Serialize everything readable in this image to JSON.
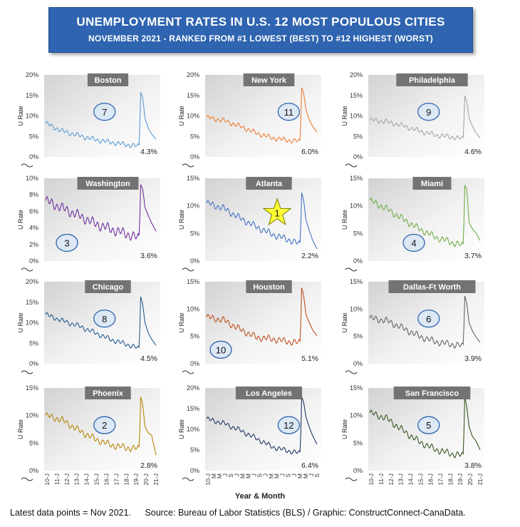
{
  "header": {
    "title": "UNEMPLOYMENT RATES IN U.S. 12 MOST POPULOUS CITIES",
    "subtitle": "NOVEMBER 2021 - RANKED FROM #1 LOWEST (BEST) TO #12 HIGHEST (WORST)"
  },
  "footer": {
    "note": "Latest data points = Nov 2021.",
    "source": "Source: Bureau of Labor Statistics (BLS) / Graphic: ConstructConnect-CanaData."
  },
  "axis_titles": {
    "y": "U Rate",
    "x": "Year & Month"
  },
  "chart_data": [
    {
      "type": "line",
      "city": "Boston",
      "rank": "7",
      "last_label": "4.3%",
      "color": "#5b9bd5",
      "y_ticks": [
        "0%",
        "5%",
        "10%",
        "15%",
        "20%"
      ],
      "ylim": [
        0,
        20
      ],
      "x_ticks": [],
      "points": [
        [
          0,
          8.2
        ],
        [
          0.15,
          6.3
        ],
        [
          0.3,
          5.2
        ],
        [
          0.45,
          4.2
        ],
        [
          0.6,
          3.5
        ],
        [
          0.75,
          2.9
        ],
        [
          0.85,
          2.6
        ],
        [
          0.86,
          15.8
        ],
        [
          0.88,
          14.5
        ],
        [
          0.9,
          9.5
        ],
        [
          0.93,
          7.0
        ],
        [
          0.96,
          5.6
        ],
        [
          1,
          4.3
        ]
      ]
    },
    {
      "type": "line",
      "city": "New York",
      "rank": "11",
      "last_label": "6.0%",
      "color": "#ed7d31",
      "y_ticks": [
        "0%",
        "5%",
        "10%",
        "15%",
        "20%"
      ],
      "ylim": [
        0,
        20
      ],
      "x_ticks": [],
      "points": [
        [
          0,
          9.6
        ],
        [
          0.15,
          8.9
        ],
        [
          0.3,
          7.5
        ],
        [
          0.45,
          5.8
        ],
        [
          0.6,
          4.6
        ],
        [
          0.75,
          4.0
        ],
        [
          0.85,
          3.8
        ],
        [
          0.86,
          17.0
        ],
        [
          0.88,
          15.5
        ],
        [
          0.9,
          11.5
        ],
        [
          0.93,
          9.0
        ],
        [
          0.96,
          7.5
        ],
        [
          1,
          6.0
        ]
      ]
    },
    {
      "type": "line",
      "city": "Philadelphia",
      "rank": "9",
      "last_label": "4.6%",
      "color": "#a5a5a5",
      "y_ticks": [
        "0%",
        "5%",
        "10%",
        "15%",
        "20%"
      ],
      "ylim": [
        0,
        20
      ],
      "x_ticks": [],
      "points": [
        [
          0,
          9.0
        ],
        [
          0.15,
          8.6
        ],
        [
          0.3,
          7.6
        ],
        [
          0.45,
          6.3
        ],
        [
          0.6,
          5.3
        ],
        [
          0.75,
          4.8
        ],
        [
          0.85,
          4.4
        ],
        [
          0.86,
          15.0
        ],
        [
          0.88,
          13.5
        ],
        [
          0.9,
          9.5
        ],
        [
          0.93,
          7.5
        ],
        [
          0.96,
          6.0
        ],
        [
          1,
          4.6
        ]
      ]
    },
    {
      "type": "line",
      "city": "Washington",
      "rank": "3",
      "last_label": "3.6%",
      "color": "#7030a0",
      "y_ticks": [
        "0%",
        "2%",
        "4%",
        "6%",
        "8%",
        "10%"
      ],
      "ylim": [
        0,
        10
      ],
      "x_ticks": [],
      "points": [
        [
          0,
          7.3
        ],
        [
          0.15,
          6.4
        ],
        [
          0.3,
          5.5
        ],
        [
          0.45,
          4.5
        ],
        [
          0.6,
          3.8
        ],
        [
          0.75,
          3.2
        ],
        [
          0.85,
          2.7
        ],
        [
          0.86,
          9.3
        ],
        [
          0.88,
          8.7
        ],
        [
          0.9,
          6.5
        ],
        [
          0.93,
          5.5
        ],
        [
          0.96,
          4.6
        ],
        [
          1,
          3.6
        ]
      ]
    },
    {
      "type": "line",
      "city": "Atlanta",
      "rank": "1",
      "star": true,
      "last_label": "2.2%",
      "color": "#4472c4",
      "y_ticks": [
        "0%",
        "5%",
        "10%",
        "15%"
      ],
      "ylim": [
        0,
        15
      ],
      "x_ticks": [],
      "points": [
        [
          0,
          10.5
        ],
        [
          0.15,
          9.6
        ],
        [
          0.3,
          7.8
        ],
        [
          0.45,
          6.2
        ],
        [
          0.6,
          4.8
        ],
        [
          0.75,
          3.8
        ],
        [
          0.85,
          3.0
        ],
        [
          0.86,
          12.5
        ],
        [
          0.88,
          11.0
        ],
        [
          0.9,
          7.5
        ],
        [
          0.93,
          5.5
        ],
        [
          0.96,
          3.8
        ],
        [
          1,
          2.2
        ]
      ]
    },
    {
      "type": "line",
      "city": "Miami",
      "rank": "4",
      "last_label": "3.7%",
      "color": "#70ad47",
      "y_ticks": [
        "0%",
        "5%",
        "10%",
        "15%"
      ],
      "ylim": [
        0,
        15
      ],
      "x_ticks": [],
      "points": [
        [
          0,
          11.0
        ],
        [
          0.15,
          9.5
        ],
        [
          0.3,
          7.6
        ],
        [
          0.45,
          5.8
        ],
        [
          0.6,
          4.3
        ],
        [
          0.75,
          3.3
        ],
        [
          0.85,
          2.8
        ],
        [
          0.86,
          13.7
        ],
        [
          0.88,
          13.0
        ],
        [
          0.9,
          7.0
        ],
        [
          0.93,
          5.8
        ],
        [
          0.96,
          5.2
        ],
        [
          1,
          3.7
        ]
      ]
    },
    {
      "type": "line",
      "city": "Chicago",
      "rank": "8",
      "last_label": "4.5%",
      "color": "#255e91",
      "y_ticks": [
        "0%",
        "5%",
        "10%",
        "15%",
        "20%"
      ],
      "ylim": [
        0,
        20
      ],
      "x_ticks": [],
      "points": [
        [
          0,
          12.0
        ],
        [
          0.15,
          10.5
        ],
        [
          0.3,
          9.2
        ],
        [
          0.45,
          7.5
        ],
        [
          0.6,
          5.8
        ],
        [
          0.75,
          4.6
        ],
        [
          0.85,
          3.6
        ],
        [
          0.86,
          16.5
        ],
        [
          0.88,
          14.5
        ],
        [
          0.9,
          10.0
        ],
        [
          0.93,
          7.5
        ],
        [
          0.96,
          6.0
        ],
        [
          1,
          4.5
        ]
      ]
    },
    {
      "type": "line",
      "city": "Houston",
      "rank": "10",
      "last_label": "5.1%",
      "color": "#c0501e",
      "y_ticks": [
        "0%",
        "5%",
        "10%",
        "15%"
      ],
      "ylim": [
        0,
        15
      ],
      "x_ticks": [],
      "points": [
        [
          0,
          8.5
        ],
        [
          0.15,
          8.0
        ],
        [
          0.3,
          6.3
        ],
        [
          0.45,
          4.8
        ],
        [
          0.6,
          4.5
        ],
        [
          0.75,
          4.0
        ],
        [
          0.85,
          3.8
        ],
        [
          0.86,
          14.0
        ],
        [
          0.88,
          12.5
        ],
        [
          0.9,
          9.0
        ],
        [
          0.93,
          7.5
        ],
        [
          0.96,
          6.2
        ],
        [
          1,
          5.1
        ]
      ]
    },
    {
      "type": "line",
      "city": "Dallas-Ft Worth",
      "rank": "6",
      "last_label": "3.9%",
      "color": "#636363",
      "y_ticks": [
        "0%",
        "5%",
        "10%",
        "15%"
      ],
      "ylim": [
        0,
        15
      ],
      "x_ticks": [],
      "points": [
        [
          0,
          8.3
        ],
        [
          0.15,
          7.9
        ],
        [
          0.3,
          6.5
        ],
        [
          0.45,
          5.0
        ],
        [
          0.6,
          4.0
        ],
        [
          0.75,
          3.5
        ],
        [
          0.85,
          3.2
        ],
        [
          0.86,
          12.5
        ],
        [
          0.88,
          11.0
        ],
        [
          0.9,
          7.5
        ],
        [
          0.93,
          6.0
        ],
        [
          0.96,
          5.0
        ],
        [
          1,
          3.9
        ]
      ]
    },
    {
      "type": "line",
      "city": "Phoenix",
      "rank": "2",
      "last_label": "2.8%",
      "color": "#b8860b",
      "y_ticks": [
        "0%",
        "5%",
        "10%",
        "15%"
      ],
      "ylim": [
        0,
        15
      ],
      "x_ticks": [
        "10-J",
        "11-J",
        "12-J",
        "13-J",
        "14-J",
        "15-J",
        "16-J",
        "17-J",
        "18-J",
        "19-J",
        "20-J",
        "21-J"
      ],
      "points": [
        [
          0,
          10.0
        ],
        [
          0.15,
          9.2
        ],
        [
          0.3,
          7.3
        ],
        [
          0.45,
          5.7
        ],
        [
          0.6,
          4.6
        ],
        [
          0.75,
          4.1
        ],
        [
          0.85,
          4.0
        ],
        [
          0.86,
          13.5
        ],
        [
          0.88,
          12.0
        ],
        [
          0.9,
          8.0
        ],
        [
          0.93,
          6.8
        ],
        [
          0.96,
          6.5
        ],
        [
          1,
          2.8
        ]
      ]
    },
    {
      "type": "line",
      "city": "Los Angeles",
      "rank": "12",
      "last_label": "6.4%",
      "color": "#203864",
      "y_ticks": [
        "0%",
        "5%",
        "10%",
        "15%",
        "20%"
      ],
      "ylim": [
        0,
        20
      ],
      "x_ticks": [
        "10-J",
        "M",
        "M",
        "J",
        "S",
        "J",
        "M",
        "M",
        "J",
        "S",
        "J",
        "M",
        "M",
        "J",
        "S",
        "J",
        "M",
        "M",
        "J",
        "S"
      ],
      "points": [
        [
          0,
          12.5
        ],
        [
          0.15,
          11.5
        ],
        [
          0.3,
          9.8
        ],
        [
          0.45,
          7.8
        ],
        [
          0.6,
          5.7
        ],
        [
          0.75,
          4.7
        ],
        [
          0.85,
          4.2
        ],
        [
          0.86,
          18.0
        ],
        [
          0.88,
          16.5
        ],
        [
          0.9,
          13.0
        ],
        [
          0.93,
          10.5
        ],
        [
          0.96,
          8.5
        ],
        [
          1,
          6.4
        ]
      ]
    },
    {
      "type": "line",
      "city": "San Francisco",
      "rank": "5",
      "last_label": "3.8%",
      "color": "#375623",
      "y_ticks": [
        "0%",
        "5%",
        "10%",
        "15%"
      ],
      "ylim": [
        0,
        15
      ],
      "x_ticks": [
        "10-J",
        "11-J",
        "12-J",
        "13-J",
        "14-J",
        "15-J",
        "16-J",
        "17-J",
        "18-J",
        "19-J",
        "20-J",
        "21-J"
      ],
      "points": [
        [
          0,
          10.5
        ],
        [
          0.15,
          9.5
        ],
        [
          0.3,
          7.3
        ],
        [
          0.45,
          5.2
        ],
        [
          0.6,
          3.8
        ],
        [
          0.75,
          3.0
        ],
        [
          0.85,
          2.7
        ],
        [
          0.86,
          13.7
        ],
        [
          0.88,
          11.5
        ],
        [
          0.9,
          8.0
        ],
        [
          0.93,
          6.2
        ],
        [
          0.96,
          5.5
        ],
        [
          1,
          3.8
        ]
      ]
    }
  ]
}
